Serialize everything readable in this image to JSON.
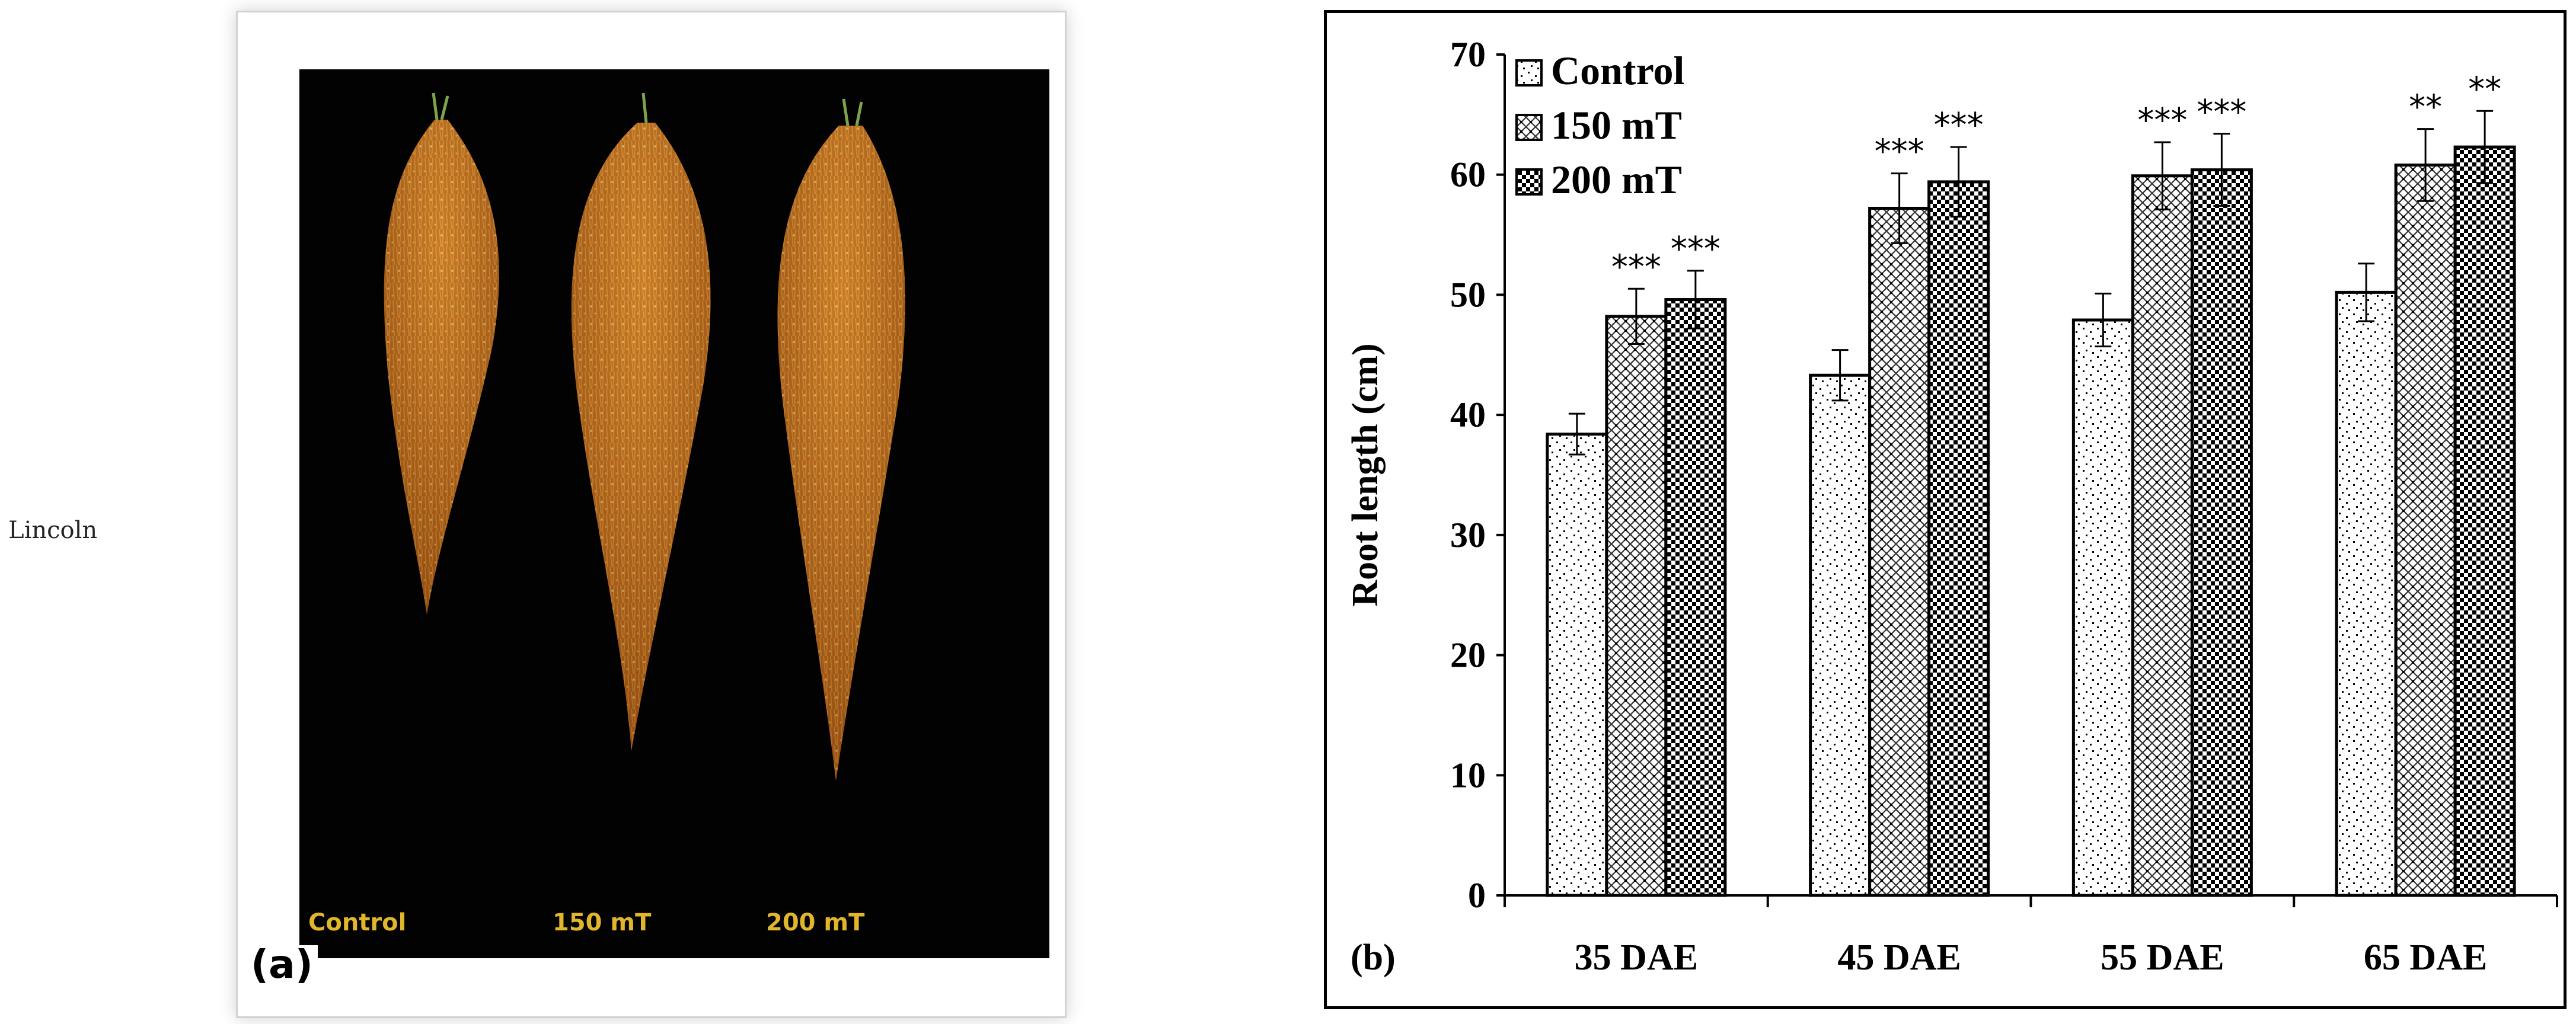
{
  "side_label": "Lincoln",
  "photo": {
    "panel_label": "(a)",
    "labels": [
      "Control",
      "150 mT",
      "200 mT"
    ]
  },
  "colors": {
    "photo_background": "#020202",
    "root_color": "#c9761c",
    "root_highlight": "#f2c45a",
    "label_color": "#e1b52c",
    "bar_outline": "#000000"
  },
  "chart_data": {
    "type": "bar",
    "panel_label": "(b)",
    "title": "",
    "xlabel": "",
    "ylabel": "Root length (cm)",
    "ylim": [
      0,
      70
    ],
    "yticks": [
      "0",
      "10",
      "20",
      "30",
      "40",
      "50",
      "60",
      "70"
    ],
    "categories": [
      "35 DAE",
      "45 DAE",
      "55 DAE",
      "65 DAE"
    ],
    "legend_position": "top-left",
    "grid": false,
    "series": [
      {
        "name": "Control",
        "pattern": "dotted",
        "values": [
          38.4,
          43.3,
          47.9,
          50.2
        ],
        "errors": [
          1.7,
          2.1,
          2.2,
          2.4
        ],
        "significance": [
          "",
          "",
          "",
          ""
        ]
      },
      {
        "name": "150 mT",
        "pattern": "crosshatch",
        "values": [
          48.2,
          57.2,
          59.9,
          60.8
        ],
        "errors": [
          2.3,
          2.9,
          2.8,
          3.0
        ],
        "significance": [
          "***",
          "***",
          "***",
          "**"
        ]
      },
      {
        "name": "200 mT",
        "pattern": "checkerboard",
        "values": [
          49.6,
          59.4,
          60.4,
          62.3
        ],
        "errors": [
          2.4,
          2.9,
          3.0,
          3.0
        ],
        "significance": [
          "***",
          "***",
          "***",
          "**"
        ]
      }
    ]
  }
}
